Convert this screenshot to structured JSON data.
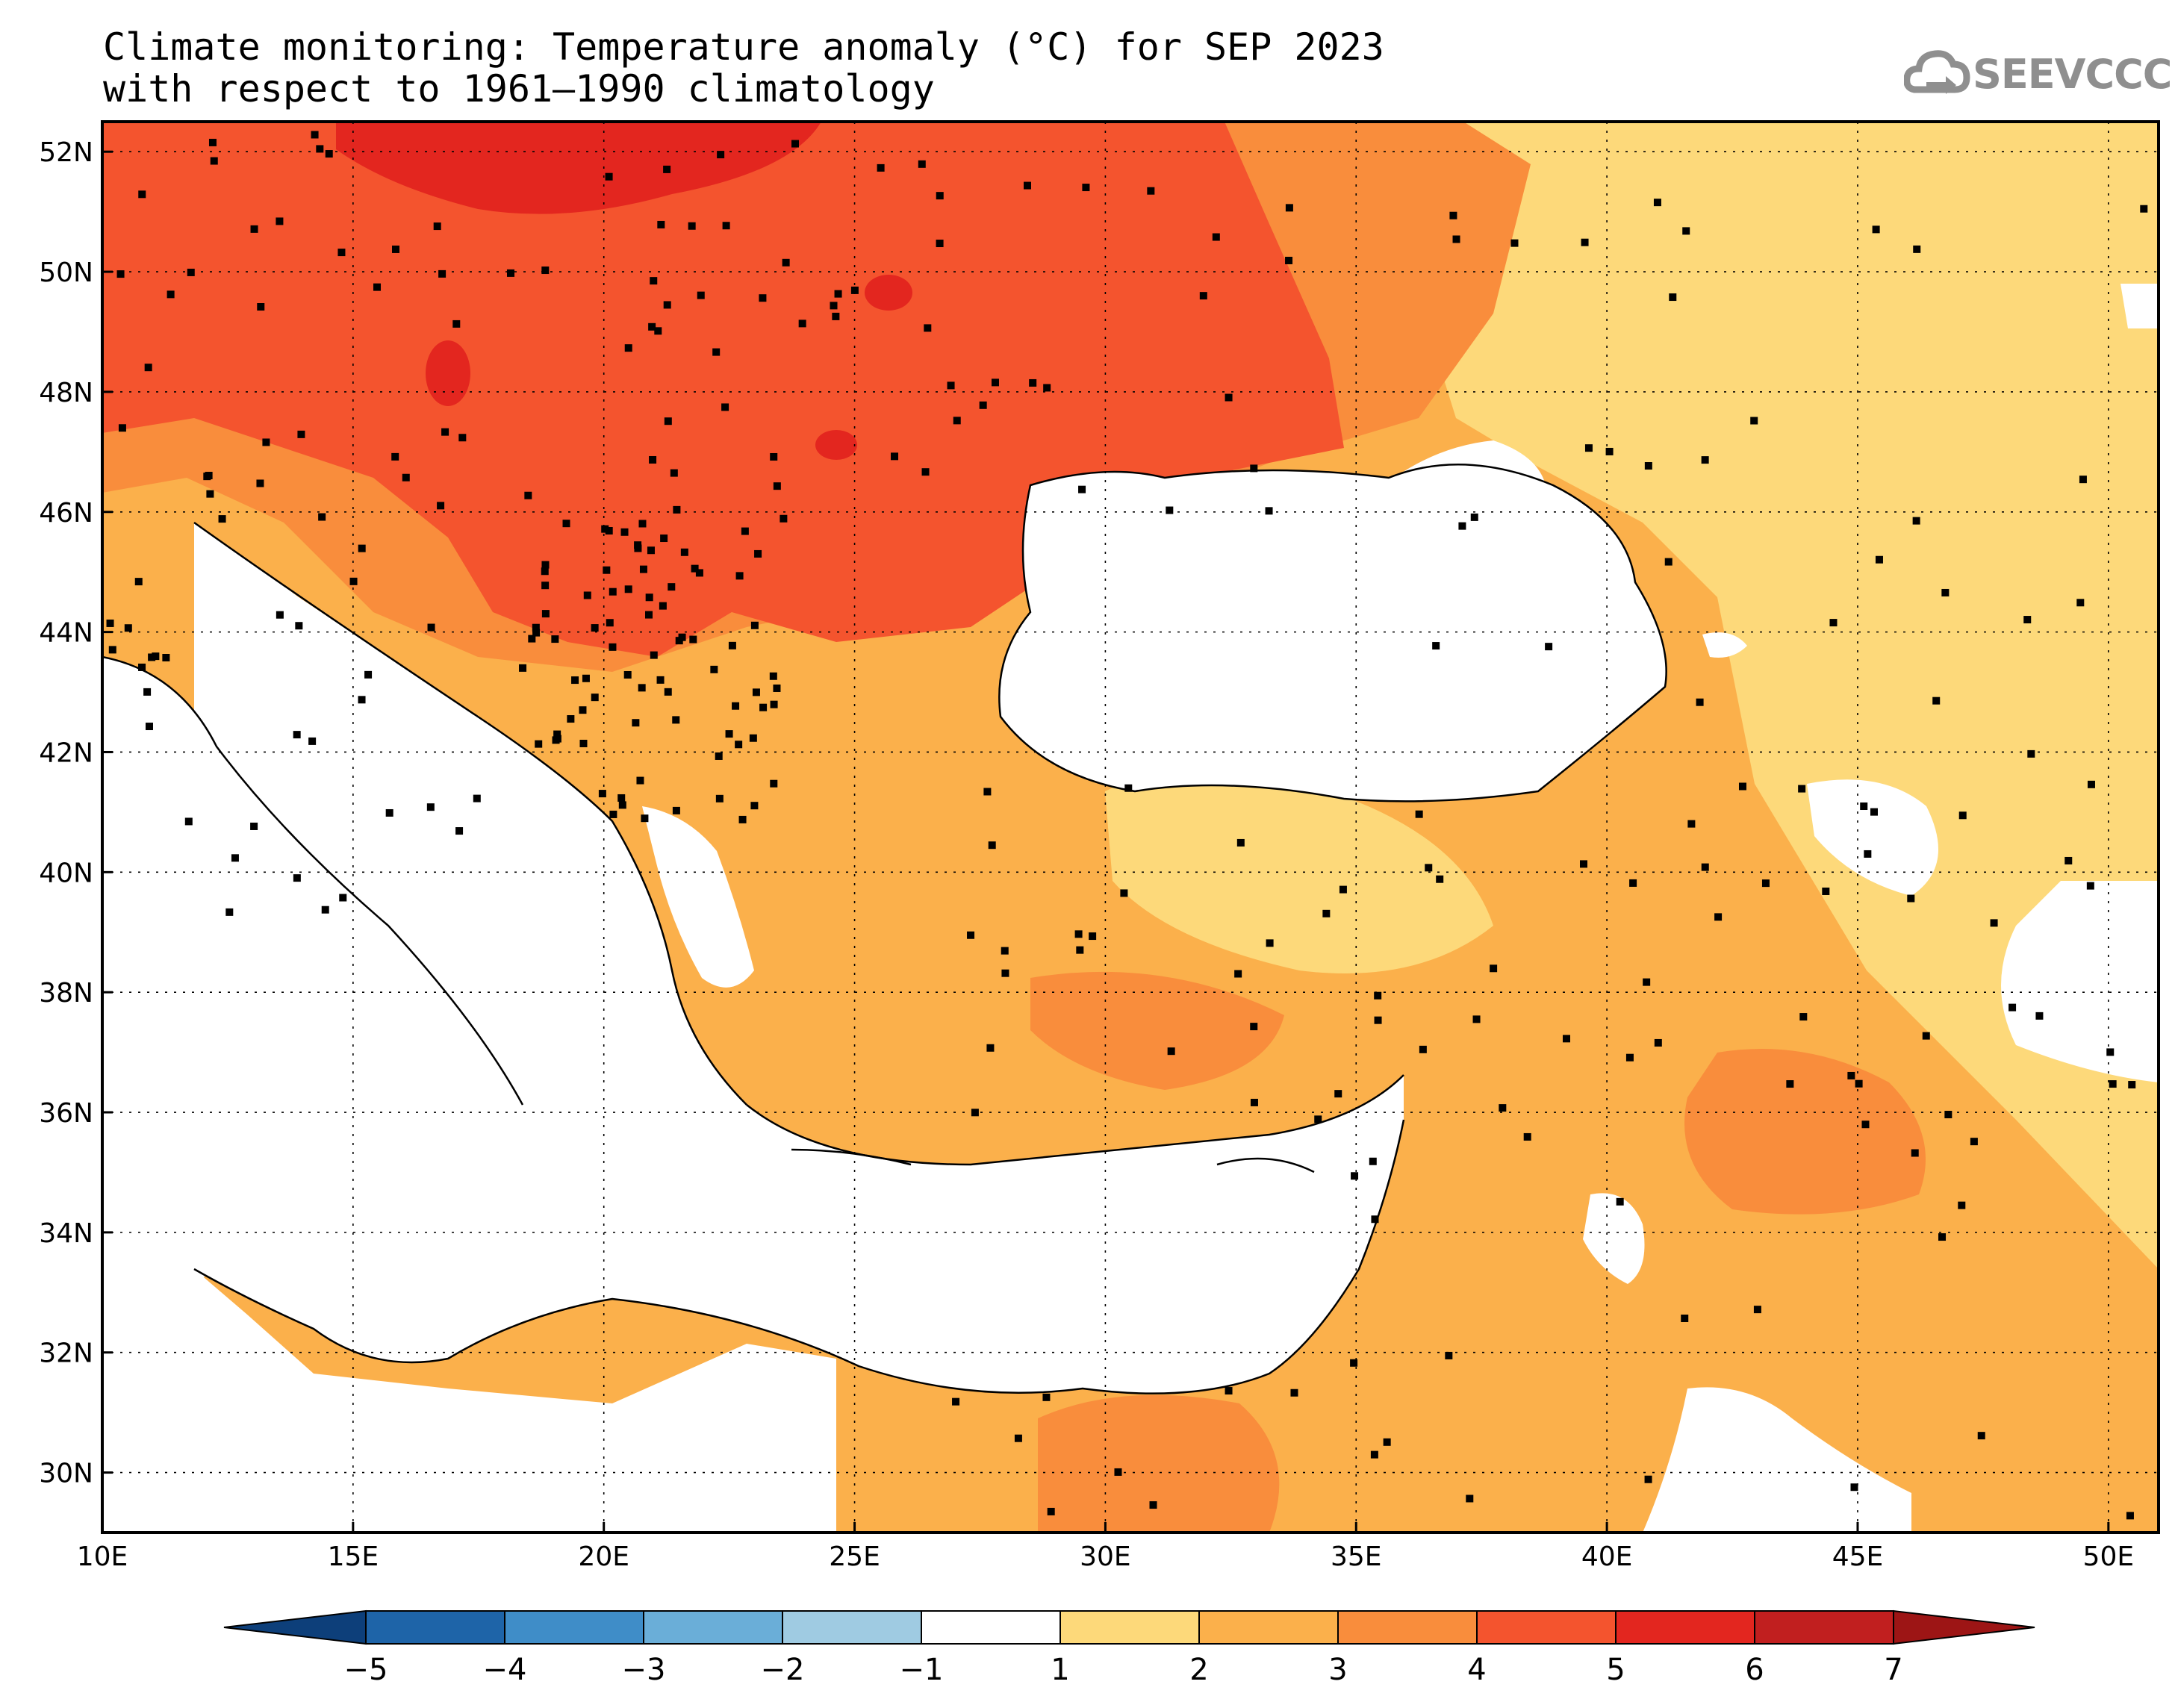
{
  "title": {
    "line1": "Climate monitoring: Temperature anomaly (°C) for SEP 2023",
    "line2": "with respect to 1961–1990 climatology"
  },
  "logo": {
    "text": "SEEVCCC",
    "icon": "cloud-icon",
    "color": "#8f8f8f"
  },
  "map": {
    "lon_range": [
      10,
      51
    ],
    "lat_range": [
      29,
      52.5
    ],
    "lon_ticks": [
      {
        "value": 10,
        "label": "10E"
      },
      {
        "value": 15,
        "label": "15E"
      },
      {
        "value": 20,
        "label": "20E"
      },
      {
        "value": 25,
        "label": "25E"
      },
      {
        "value": 30,
        "label": "30E"
      },
      {
        "value": 35,
        "label": "35E"
      },
      {
        "value": 40,
        "label": "40E"
      },
      {
        "value": 45,
        "label": "45E"
      },
      {
        "value": 50,
        "label": "50E"
      }
    ],
    "lat_ticks": [
      {
        "value": 30,
        "label": "30N"
      },
      {
        "value": 32,
        "label": "32N"
      },
      {
        "value": 34,
        "label": "34N"
      },
      {
        "value": 36,
        "label": "36N"
      },
      {
        "value": 38,
        "label": "38N"
      },
      {
        "value": 40,
        "label": "40N"
      },
      {
        "value": 42,
        "label": "42N"
      },
      {
        "value": 44,
        "label": "44N"
      },
      {
        "value": 46,
        "label": "46N"
      },
      {
        "value": 48,
        "label": "48N"
      },
      {
        "value": 50,
        "label": "50N"
      },
      {
        "value": 52,
        "label": "52N"
      }
    ],
    "gridlines": "dotted",
    "stations_marker": "black square"
  },
  "colorbar": {
    "labels": [
      "−5",
      "−4",
      "−3",
      "−2",
      "−1",
      "1",
      "2",
      "3",
      "4",
      "5",
      "6",
      "7"
    ],
    "colors": [
      "#0d3f7a",
      "#1e64a8",
      "#3f8dc8",
      "#6aaed8",
      "#9fcbe2",
      "#ffffff",
      "#fdd97a",
      "#fbb04b",
      "#f98d3c",
      "#f4542e",
      "#e3261f",
      "#c11f1f",
      "#9d1515"
    ]
  }
}
